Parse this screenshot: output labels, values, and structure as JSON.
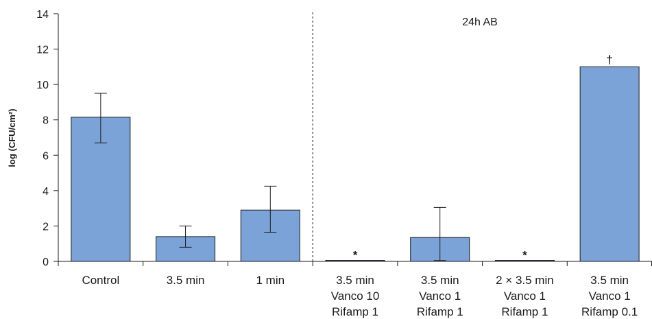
{
  "chart_data": {
    "type": "bar",
    "ylabel": "log (CFU/cm²)",
    "ylim": [
      0,
      14
    ],
    "yticks": [
      "0",
      "2",
      "4",
      "6",
      "8",
      "10",
      "12",
      "14"
    ],
    "grid": false,
    "categories": [
      [
        "Control"
      ],
      [
        "3.5 min"
      ],
      [
        "1 min"
      ],
      [
        "3.5 min",
        "Vanco 10",
        "Rifamp 1"
      ],
      [
        "3.5 min",
        "Vanco 1",
        "Rifamp 1"
      ],
      [
        "2 × 3.5 min",
        "Vanco 1",
        "Rifamp 1"
      ],
      [
        "3.5 min",
        "Vanco 1",
        "Rifamp 0.1"
      ]
    ],
    "values": [
      8.15,
      1.4,
      2.9,
      0.05,
      1.35,
      0.05,
      11.0
    ],
    "error_high": [
      9.5,
      2.0,
      4.25,
      null,
      3.05,
      null,
      null
    ],
    "error_low": [
      6.7,
      0.8,
      1.65,
      null,
      0.05,
      null,
      null
    ],
    "markers": [
      "",
      "",
      "",
      "*",
      "",
      "*",
      "†"
    ],
    "divider_after_index": 2,
    "annotation": "24h AB",
    "bar_color": "#7ba3d8",
    "bar_stroke": "#1a1a1a"
  }
}
